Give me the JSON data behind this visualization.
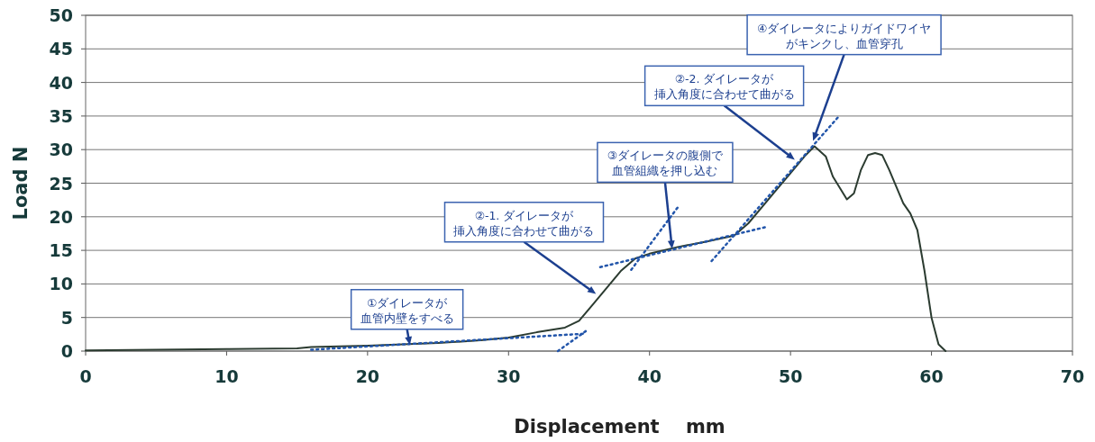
{
  "chart_data": {
    "type": "line",
    "xlabel": "Displacement    mm",
    "ylabel": "Load N",
    "xlim": [
      0,
      70
    ],
    "ylim": [
      0,
      50
    ],
    "xticks": [
      0,
      10,
      20,
      30,
      40,
      50,
      60,
      70
    ],
    "yticks": [
      0,
      5,
      10,
      15,
      20,
      25,
      30,
      35,
      40,
      45,
      50
    ],
    "grid": "y",
    "series": [
      {
        "color": "#2b3b30",
        "line_style": "solid",
        "x": [
          0,
          5,
          10,
          15,
          16,
          20,
          25,
          28,
          30,
          32,
          34,
          35,
          36,
          37,
          38,
          39,
          40,
          42,
          44,
          46,
          47,
          48,
          49,
          50,
          51,
          51.7,
          52.5,
          53,
          54,
          54.5,
          55,
          55.5,
          56,
          56.5,
          57,
          58,
          58.5,
          59,
          59.5,
          60,
          60.5,
          61
        ],
        "values": [
          0.1,
          0.2,
          0.3,
          0.4,
          0.6,
          0.8,
          1.2,
          1.6,
          2,
          2.8,
          3.5,
          4.5,
          7,
          9.5,
          12,
          13.8,
          14.5,
          15.5,
          16.3,
          17.2,
          19,
          21.5,
          24,
          26.5,
          29,
          30.5,
          29,
          26,
          22.6,
          23.5,
          27,
          29.2,
          29.5,
          29.2,
          27,
          22,
          20.5,
          18,
          12,
          5,
          1,
          0
        ]
      },
      {
        "type": "line",
        "color": "#2255aa",
        "line_style": "dotted",
        "x": [
          16,
          35.5
        ],
        "values": [
          0.2,
          2.6
        ]
      },
      {
        "type": "line",
        "color": "#2255aa",
        "line_style": "dotted",
        "x": [
          33.5,
          35.5
        ],
        "values": [
          0,
          3
        ]
      },
      {
        "type": "line",
        "color": "#2255aa",
        "line_style": "dotted",
        "x": [
          36.5,
          48.3
        ],
        "values": [
          12.5,
          18.5
        ]
      },
      {
        "type": "line",
        "color": "#2255aa",
        "line_style": "dotted",
        "x": [
          38.7,
          42
        ],
        "values": [
          12.1,
          21.4
        ]
      },
      {
        "type": "line",
        "color": "#2255aa",
        "line_style": "dotted",
        "x": [
          44.4,
          53.4
        ],
        "values": [
          13.4,
          34.9
        ]
      }
    ],
    "annotations": [
      {
        "text": "①ダイレータが血管内壁をすべる",
        "x": 23,
        "y": 0.9
      },
      {
        "text": "②-1. ダイレータが挿入角度に合わせて曲がる",
        "x": 36.2,
        "y": 8.5
      },
      {
        "text": "③ダイレータの腹側で血管組織を押し込む",
        "x": 41.6,
        "y": 15.2
      },
      {
        "text": "②-2. ダイレータが挿入角度に合わせて曲がる",
        "x": 50.3,
        "y": 28.5
      },
      {
        "text": "④ダイレータによりガイドワイヤがキンクし、血管穿孔",
        "x": 51.6,
        "y": 31.3
      }
    ]
  }
}
